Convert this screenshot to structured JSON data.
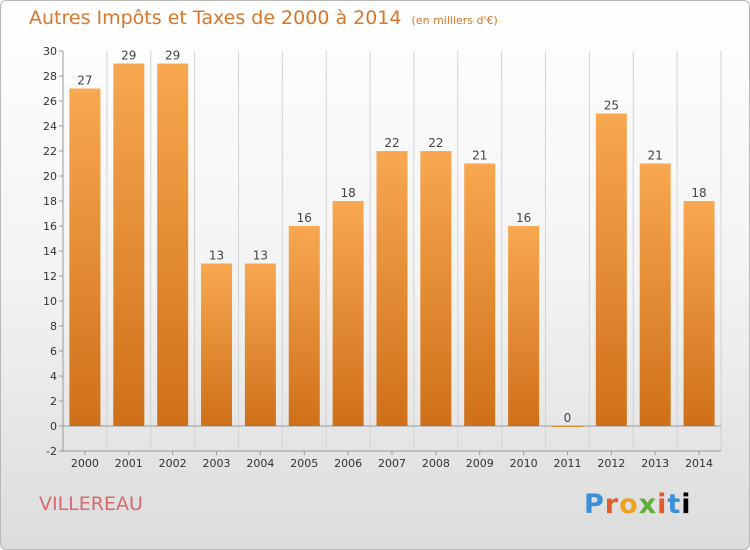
{
  "header": {
    "title": "Autres Impôts et Taxes de 2000 à 2014",
    "unit": "(en milliers d'€)"
  },
  "footer": {
    "location": "VILLEREAU",
    "logo": "Proxiti"
  },
  "colors": {
    "bar_top": "#f8a850",
    "bar_bottom": "#cf7018",
    "title": "#d9762a",
    "location": "#d46a6a",
    "grid": "#d2d2d2"
  },
  "chart_data": {
    "type": "bar",
    "title": "Autres Impôts et Taxes de 2000 à 2014",
    "ylabel": "",
    "xlabel": "",
    "categories": [
      "2000",
      "2001",
      "2002",
      "2003",
      "2004",
      "2005",
      "2006",
      "2007",
      "2008",
      "2009",
      "2010",
      "2011",
      "2012",
      "2013",
      "2014"
    ],
    "values": [
      27,
      29,
      29,
      13,
      13,
      16,
      18,
      22,
      22,
      21,
      16,
      0,
      25,
      21,
      18
    ],
    "ylim": [
      -2,
      30
    ],
    "yticks": [
      -2,
      0,
      2,
      4,
      6,
      8,
      10,
      12,
      14,
      16,
      18,
      20,
      22,
      24,
      26,
      28,
      30
    ],
    "grid": "vertical"
  }
}
